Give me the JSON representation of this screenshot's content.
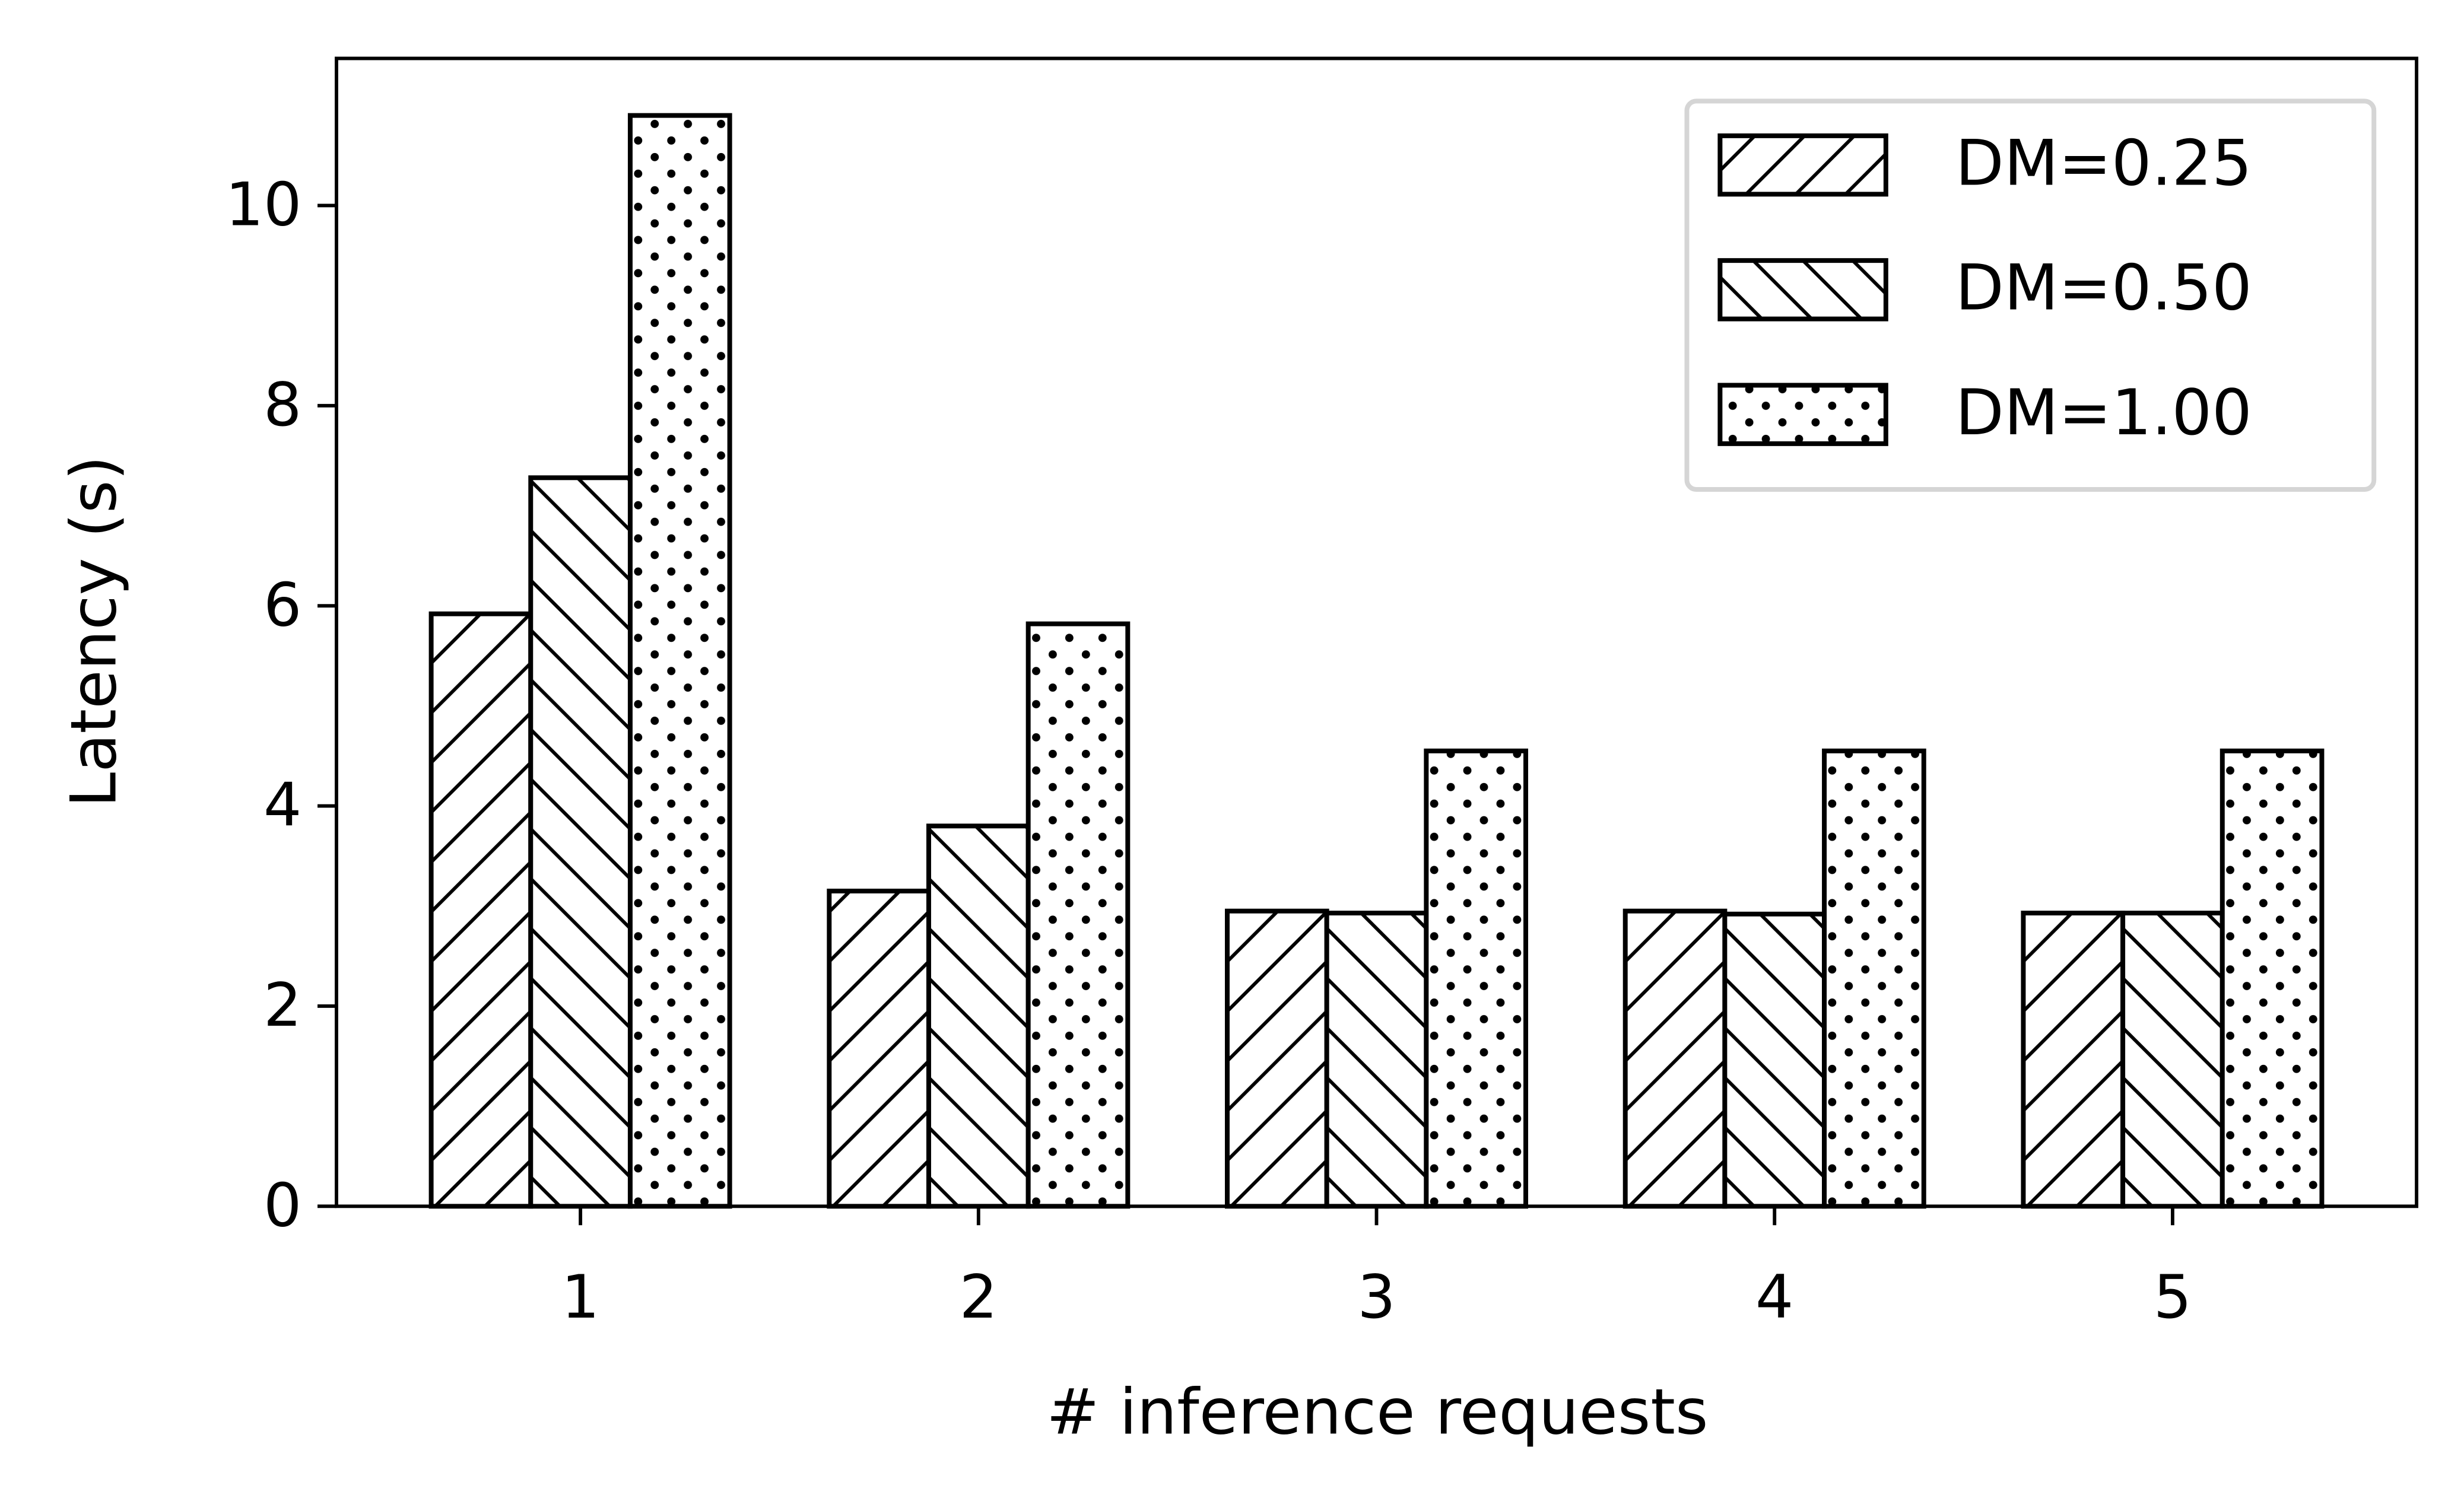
{
  "chart_data": {
    "type": "bar",
    "x_label": "# inference requests",
    "y_label": "Latency (s)",
    "categories": [
      "1",
      "2",
      "3",
      "4",
      "5"
    ],
    "series": [
      {
        "name": "DM=0.25",
        "color": "#000000",
        "hatch": "/",
        "values": [
          5.92,
          3.15,
          2.95,
          2.95,
          2.93
        ]
      },
      {
        "name": "DM=0.50",
        "color": "#000000",
        "hatch": "\\",
        "values": [
          7.28,
          3.8,
          2.93,
          2.92,
          2.93
        ]
      },
      {
        "name": "DM=1.00",
        "color": "#000000",
        "hatch": ".",
        "values": [
          10.9,
          5.82,
          4.55,
          4.55,
          4.55
        ]
      }
    ],
    "ylim": [
      0,
      11.47
    ],
    "yticks": [
      0,
      2,
      4,
      6,
      8,
      10
    ],
    "grid": false,
    "legend": "upper right"
  }
}
